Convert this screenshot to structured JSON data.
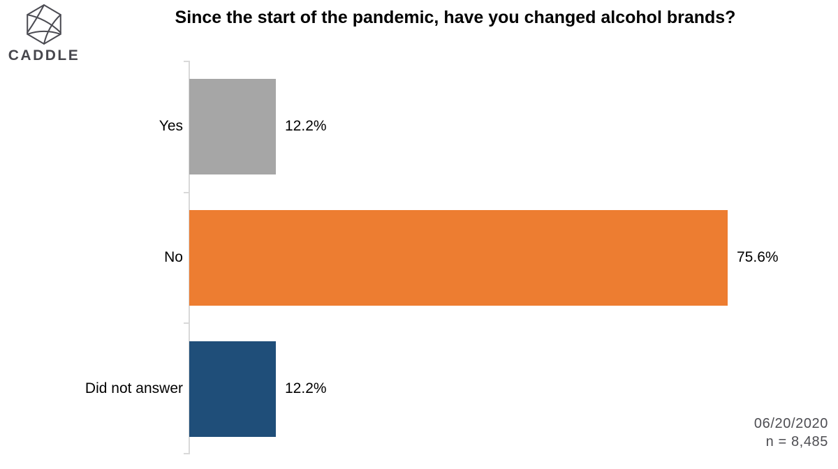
{
  "logo": {
    "brand": "CADDLE"
  },
  "chart_data": {
    "type": "bar",
    "orientation": "horizontal",
    "title": "Since the start of the pandemic, have you changed alcohol brands?",
    "categories": [
      "Yes",
      "No",
      "Did not answer"
    ],
    "values": [
      12.2,
      75.6,
      12.2
    ],
    "value_labels": [
      "12.2%",
      "75.6%",
      "12.2%"
    ],
    "bar_colors": [
      "#a6a6a6",
      "#ed7d31",
      "#1f4e79"
    ],
    "xlabel": "",
    "ylabel": "",
    "xlim": [
      0,
      91
    ],
    "grid": false,
    "legend": false,
    "data_label_position": "outside-end"
  },
  "footer": {
    "date": "06/20/2020",
    "sample": "n = 8,485"
  }
}
